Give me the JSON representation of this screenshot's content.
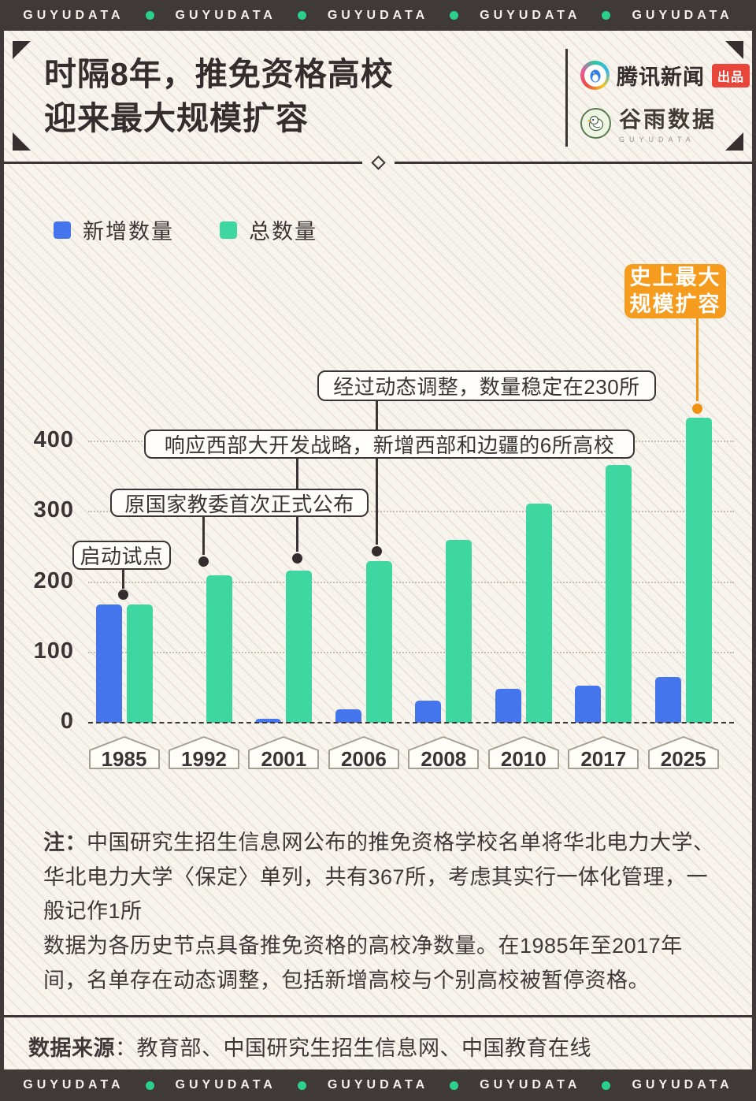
{
  "banner": {
    "brand": "GUYUDATA",
    "repeat": 5
  },
  "header": {
    "title_line1": "时隔8年，推免资格高校",
    "title_line2": "迎来最大规模扩容",
    "tencent_name": "腾讯新闻",
    "tencent_badge": "出品",
    "guyu_name": "谷雨数据",
    "guyu_sub": "GUYUDATA"
  },
  "legend": [
    {
      "label": "新增数量",
      "color": "#4575ec"
    },
    {
      "label": "总数量",
      "color": "#3fd7a1"
    }
  ],
  "chart_data": {
    "type": "bar",
    "title": "时隔8年，推免资格高校迎来最大规模扩容",
    "categories": [
      "1985",
      "1992",
      "2001",
      "2006",
      "2008",
      "2010",
      "2017",
      "2025"
    ],
    "series": [
      {
        "name": "新增数量",
        "color": "#4575ec",
        "values": [
          168,
          null,
          6,
          19,
          31,
          48,
          53,
          65
        ]
      },
      {
        "name": "总数量",
        "color": "#3fd7a1",
        "values": [
          168,
          210,
          216,
          230,
          260,
          312,
          366,
          434
        ]
      }
    ],
    "ylim": [
      0,
      440
    ],
    "yticks": [
      0,
      100,
      200,
      300,
      400
    ],
    "grid": "dotted horizontal, dashed zero baseline",
    "legend_position": "top-left",
    "annotations": [
      {
        "text": "启动试点",
        "year": "1985"
      },
      {
        "text": "原国家教委首次正式公布",
        "year": "1992"
      },
      {
        "text": "响应西部大开发战略，新增西部和边疆的6所高校",
        "year": "2001"
      },
      {
        "text": "经过动态调整，数量稳定在230所",
        "year": "2006"
      },
      {
        "text": "史上最大规模扩容",
        "year": "2025",
        "style": "orange"
      }
    ]
  },
  "note": {
    "label": "注：",
    "p1": "中国研究生招生信息网公布的推免资格学校名单将华北电力大学、华北电力大学〈保定〉单列，共有367所，考虑其实行一体化管理，一般记作1所",
    "p2": "数据为各历史节点具备推免资格的高校净数量。在1985年至2017年间，名单存在动态调整，包括新增高校与个别高校被暂停资格。"
  },
  "source": {
    "label": "数据来源",
    "text": "：教育部、中国研究生招生信息网、中国教育在线"
  },
  "colors": {
    "new_bar": "#4575ec",
    "total_bar": "#3fd7a1",
    "accent_orange": "#f59b1e",
    "badge_red": "#e8463a",
    "banner_bg": "#3f3938",
    "banner_dot": "#2bd08d",
    "ink": "#3a3434",
    "background": "#f7f4ee"
  }
}
